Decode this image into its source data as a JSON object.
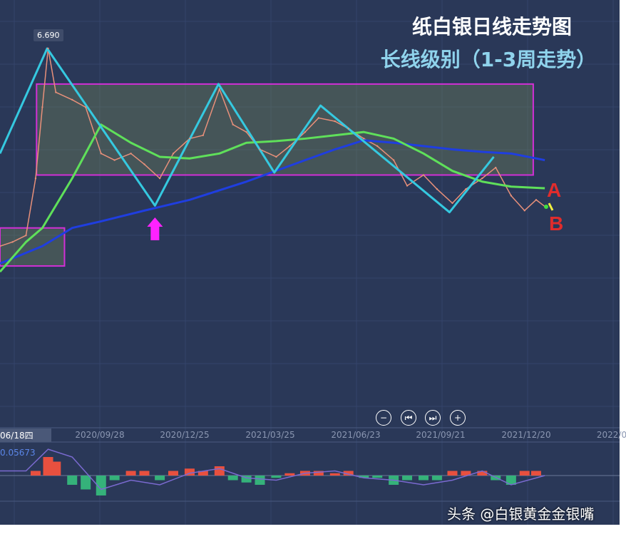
{
  "title": "纸白银日线走势图",
  "subtitle": "长线级别（1-3周走势）",
  "watermark": "头条 @白银黄金金银嘴",
  "controls": [
    "zoom-out",
    "step-back",
    "step-forward",
    "zoom-in"
  ],
  "control_glyphs": [
    "−",
    "⏮",
    "⏭",
    "+"
  ],
  "labels": {
    "a": "A",
    "b": "B",
    "peak": "6.690",
    "cursor_date": "06/18四",
    "macd_value": "0.05673"
  },
  "colors": {
    "background": "#2a3858",
    "price": "#e8907a",
    "ma_short": "#5fe05a",
    "ma_long": "#1f3ee0",
    "zigzag": "#35c9e0",
    "box": "#d22fd6",
    "arrow": "#ff22ff",
    "macd_pos": "#e8503f",
    "macd_neg": "#35b27a"
  },
  "chart_data": [
    {
      "type": "line",
      "title": "纸白银日线走势图",
      "x_ticks": [
        "2020/09/28",
        "2020/12/25",
        "2021/03/25",
        "2021/06/23",
        "2021/09/21",
        "2021/12/20",
        "2022/0"
      ],
      "grid": true,
      "series": [
        {
          "key": "price",
          "points": [
            [
              "2020-06-18",
              4.3
            ],
            [
              "2020-07-01",
              4.35
            ],
            [
              "2020-07-15",
              4.43
            ],
            [
              "2020-07-25",
              5.12
            ],
            [
              "2020-08-01",
              5.98
            ],
            [
              "2020-08-07",
              6.69
            ],
            [
              "2020-08-15",
              6.16
            ],
            [
              "2020-09-01",
              6.07
            ],
            [
              "2020-09-15",
              5.98
            ],
            [
              "2020-10-01",
              5.42
            ],
            [
              "2020-10-15",
              5.34
            ],
            [
              "2020-11-01",
              5.42
            ],
            [
              "2020-11-15",
              5.29
            ],
            [
              "2020-12-01",
              5.12
            ],
            [
              "2020-12-15",
              5.42
            ],
            [
              "2021-01-01",
              5.6
            ],
            [
              "2021-01-15",
              5.64
            ],
            [
              "2021-02-01",
              6.2
            ],
            [
              "2021-02-15",
              5.77
            ],
            [
              "2021-03-01",
              5.68
            ],
            [
              "2021-03-15",
              5.47
            ],
            [
              "2021-04-01",
              5.38
            ],
            [
              "2021-04-15",
              5.51
            ],
            [
              "2021-05-01",
              5.68
            ],
            [
              "2021-05-15",
              5.85
            ],
            [
              "2021-06-01",
              5.81
            ],
            [
              "2021-06-15",
              5.72
            ],
            [
              "2021-07-01",
              5.6
            ],
            [
              "2021-07-15",
              5.51
            ],
            [
              "2021-08-01",
              5.34
            ],
            [
              "2021-08-15",
              5.03
            ],
            [
              "2021-09-01",
              5.16
            ],
            [
              "2021-09-15",
              4.99
            ],
            [
              "2021-10-01",
              4.82
            ],
            [
              "2021-10-15",
              4.99
            ],
            [
              "2021-11-01",
              5.12
            ],
            [
              "2021-11-15",
              5.25
            ],
            [
              "2021-12-01",
              4.91
            ],
            [
              "2021-12-15",
              4.73
            ],
            [
              "2021-12-27",
              4.86
            ],
            [
              "2022-01-05",
              4.78
            ]
          ]
        },
        {
          "key": "ma_short",
          "points": [
            [
              "2020-06-18",
              3.99
            ],
            [
              "2020-07-15",
              4.35
            ],
            [
              "2020-08-01",
              4.52
            ],
            [
              "2020-09-01",
              5.12
            ],
            [
              "2020-10-01",
              5.77
            ],
            [
              "2020-11-01",
              5.55
            ],
            [
              "2020-12-01",
              5.38
            ],
            [
              "2021-01-01",
              5.36
            ],
            [
              "2021-02-01",
              5.42
            ],
            [
              "2021-03-01",
              5.55
            ],
            [
              "2021-04-01",
              5.57
            ],
            [
              "2021-05-01",
              5.6
            ],
            [
              "2021-06-01",
              5.64
            ],
            [
              "2021-07-01",
              5.68
            ],
            [
              "2021-08-01",
              5.6
            ],
            [
              "2021-09-01",
              5.42
            ],
            [
              "2021-10-01",
              5.21
            ],
            [
              "2021-11-01",
              5.08
            ],
            [
              "2021-12-01",
              5.02
            ],
            [
              "2022-01-05",
              5.0
            ]
          ]
        },
        {
          "key": "ma_long",
          "points": [
            [
              "2020-06-18",
              4.09
            ],
            [
              "2020-08-01",
              4.3
            ],
            [
              "2020-09-01",
              4.52
            ],
            [
              "2020-10-01",
              4.6
            ],
            [
              "2020-11-15",
              4.73
            ],
            [
              "2021-01-01",
              4.86
            ],
            [
              "2021-03-01",
              5.08
            ],
            [
              "2021-05-01",
              5.34
            ],
            [
              "2021-06-01",
              5.47
            ],
            [
              "2021-07-01",
              5.58
            ],
            [
              "2021-08-01",
              5.55
            ],
            [
              "2021-09-01",
              5.51
            ],
            [
              "2021-10-01",
              5.47
            ],
            [
              "2021-11-01",
              5.44
            ],
            [
              "2021-12-01",
              5.42
            ],
            [
              "2022-01-05",
              5.34
            ]
          ]
        },
        {
          "key": "zigzag",
          "points": [
            [
              "2020-06-18",
              5.42
            ],
            [
              "2020-08-06",
              6.69
            ],
            [
              "2020-11-26",
              4.79
            ],
            [
              "2021-01-31",
              6.26
            ],
            [
              "2021-03-30",
              5.19
            ],
            [
              "2021-05-17",
              6.0
            ],
            [
              "2021-09-28",
              4.71
            ],
            [
              "2021-11-13",
              5.38
            ]
          ]
        }
      ],
      "boxes": [
        {
          "from": "2020-07-26",
          "to": "2021-12-24",
          "high": 6.26,
          "low": 5.16
        },
        {
          "from": "2020-06-18",
          "to": "2020-08-24",
          "high": 4.52,
          "low": 4.06
        }
      ],
      "annotations": [
        {
          "text": "6.690",
          "date": "2020-08-07",
          "value": 6.69
        },
        {
          "type": "up-arrow",
          "date": "2020-11-26"
        },
        {
          "text": "A"
        },
        {
          "text": "B"
        }
      ]
    },
    {
      "type": "bar",
      "title": "",
      "label_value": "0.05673",
      "histogram": [
        [
          "2020-07-25",
          0.01
        ],
        [
          "2020-08-07",
          0.04
        ],
        [
          "2020-08-15",
          0.03
        ],
        [
          "2020-09-01",
          -0.02
        ],
        [
          "2020-09-15",
          -0.03
        ],
        [
          "2020-10-01",
          -0.043
        ],
        [
          "2020-10-15",
          -0.01
        ],
        [
          "2020-11-01",
          0.01
        ],
        [
          "2020-11-15",
          0.01
        ],
        [
          "2020-12-01",
          -0.01
        ],
        [
          "2020-12-15",
          0.01
        ],
        [
          "2021-01-01",
          0.015
        ],
        [
          "2021-01-15",
          0.01
        ],
        [
          "2021-02-01",
          0.02
        ],
        [
          "2021-02-15",
          -0.01
        ],
        [
          "2021-03-01",
          -0.015
        ],
        [
          "2021-03-15",
          -0.02
        ],
        [
          "2021-04-01",
          -0.005
        ],
        [
          "2021-04-15",
          0.005
        ],
        [
          "2021-05-01",
          0.01
        ],
        [
          "2021-05-15",
          0.01
        ],
        [
          "2021-06-01",
          0.005
        ],
        [
          "2021-06-15",
          0.01
        ],
        [
          "2021-07-01",
          -0.005
        ],
        [
          "2021-07-15",
          -0.005
        ],
        [
          "2021-08-01",
          -0.02
        ],
        [
          "2021-08-15",
          -0.01
        ],
        [
          "2021-09-01",
          -0.01
        ],
        [
          "2021-09-15",
          -0.01
        ],
        [
          "2021-10-01",
          0.01
        ],
        [
          "2021-10-15",
          0.01
        ],
        [
          "2021-11-01",
          0.01
        ],
        [
          "2021-11-15",
          -0.01
        ],
        [
          "2021-12-01",
          -0.02
        ],
        [
          "2021-12-15",
          0.01
        ],
        [
          "2021-12-27",
          0.01
        ]
      ],
      "dif": [
        [
          "2020-06-18",
          0.01
        ],
        [
          "2020-07-15",
          0.01
        ],
        [
          "2020-08-07",
          0.0567
        ],
        [
          "2020-09-01",
          0.04
        ],
        [
          "2020-10-01",
          -0.03
        ],
        [
          "2020-11-01",
          -0.01
        ],
        [
          "2020-12-01",
          -0.02
        ],
        [
          "2021-01-01",
          0.005
        ],
        [
          "2021-02-01",
          0.015
        ],
        [
          "2021-03-01",
          -0.005
        ],
        [
          "2021-04-01",
          -0.01
        ],
        [
          "2021-05-01",
          0.005
        ],
        [
          "2021-06-01",
          0.01
        ],
        [
          "2021-07-01",
          -0.005
        ],
        [
          "2021-08-01",
          -0.01
        ],
        [
          "2021-09-01",
          -0.02
        ],
        [
          "2021-10-01",
          -0.01
        ],
        [
          "2021-11-01",
          0.01
        ],
        [
          "2021-12-01",
          -0.02
        ],
        [
          "2022-01-05",
          0.0
        ]
      ]
    }
  ]
}
